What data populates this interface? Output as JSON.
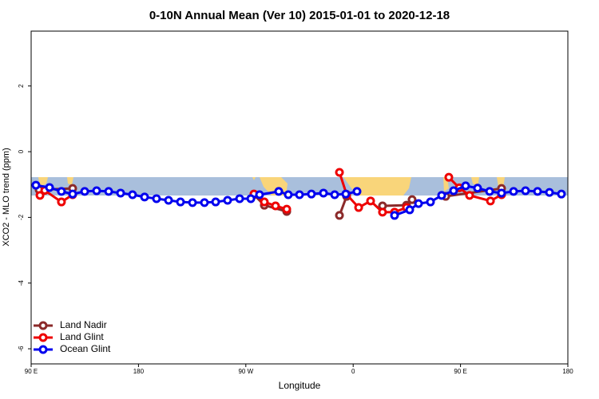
{
  "chart_data": {
    "type": "line",
    "title": "0-10N Annual Mean (Ver 10)   2015-01-01 to 2020-12-18",
    "x_label": "Longitude",
    "y_label": "XCO2 - MLO trend (ppm)",
    "xlim": [
      90,
      540
    ],
    "ylim": [
      -6.46,
      3.67
    ],
    "xticks": [
      {
        "value": 90,
        "label": "90 E"
      },
      180,
      {
        "value": 270,
        "label": "90 W"
      },
      {
        "value": 360,
        "label": "0"
      },
      {
        "value": 450,
        "label": "90 E"
      },
      {
        "value": 540,
        "label": "180"
      }
    ],
    "yticks": [
      -6,
      -4,
      -2,
      0,
      2
    ],
    "legend": "bottom-left",
    "series": [
      {
        "name": "Land Nadir",
        "color": "#8b2a2a",
        "x": [
          96.7,
          124.8,
          null,
          276.8,
          285.5,
          304.3,
          null,
          348.5,
          354.5,
          null,
          384.6,
          404.7,
          409.4,
          null,
          437.6,
          484.4
        ],
        "values": [
          -1.16,
          -1.12,
          null,
          -1.31,
          -1.63,
          -1.82,
          null,
          -1.94,
          -1.36,
          null,
          -1.65,
          -1.63,
          -1.46,
          null,
          -1.36,
          -1.12
        ]
      },
      {
        "name": "Land Glint",
        "color": "#ee0000",
        "x": [
          97.4,
          101.4,
          115.4,
          124.8,
          null,
          276.8,
          285.5,
          294.9,
          304.3,
          null,
          348.5,
          354.5,
          364.6,
          374.6,
          384.6,
          394.7,
          404.7,
          null,
          440.2,
          448.9,
          457.6,
          475.1,
          484.4
        ],
        "values": [
          -1.33,
          -1.18,
          -1.53,
          -1.31,
          null,
          -1.29,
          -1.53,
          -1.65,
          -1.75,
          null,
          -0.63,
          -1.3,
          -1.7,
          -1.5,
          -1.84,
          -1.84,
          -1.7,
          null,
          -0.78,
          -1.1,
          -1.33,
          -1.5,
          -1.31
        ]
      },
      {
        "name": "Ocean Glint",
        "color": "#0000ee",
        "x": [
          94,
          105.4,
          115.4,
          124.8,
          134.9,
          144.9,
          155,
          165,
          175,
          185.1,
          195.1,
          205.2,
          215.2,
          225.3,
          235.3,
          244.7,
          254.7,
          264.8,
          274.2,
          281.5,
          297.6,
          305.6,
          315,
          325,
          335.1,
          344.5,
          353.8,
          363.2,
          null,
          394.7,
          407.4,
          414.8,
          424.8,
          434.2,
          444.2,
          454.3,
          464.3,
          474.4,
          484.4,
          494.5,
          504.5,
          514.6,
          524.6,
          534.6
        ],
        "values": [
          -1.02,
          -1.09,
          -1.21,
          -1.29,
          -1.21,
          -1.19,
          -1.21,
          -1.26,
          -1.31,
          -1.38,
          -1.43,
          -1.48,
          -1.53,
          -1.55,
          -1.55,
          -1.53,
          -1.48,
          -1.43,
          -1.43,
          -1.31,
          -1.21,
          -1.31,
          -1.31,
          -1.29,
          -1.26,
          -1.31,
          -1.29,
          -1.21,
          null,
          -1.94,
          -1.77,
          -1.58,
          -1.53,
          -1.33,
          -1.19,
          -1.04,
          -1.11,
          -1.21,
          -1.26,
          -1.21,
          -1.19,
          -1.21,
          -1.24,
          -1.29
        ]
      }
    ]
  }
}
